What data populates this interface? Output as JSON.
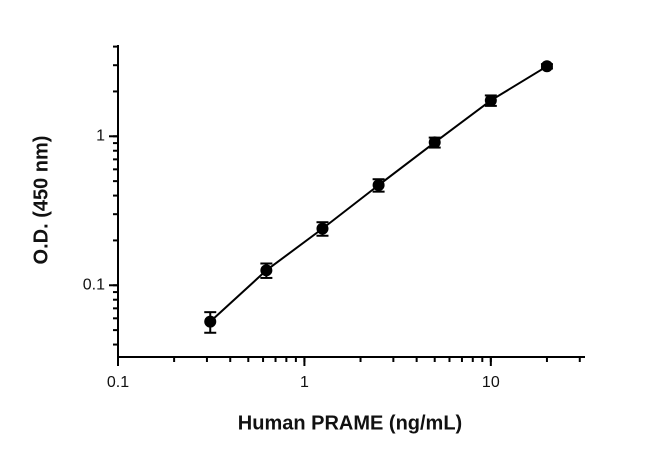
{
  "chart_data": {
    "type": "scatter",
    "x_label": "Human PRAME (ng/mL)",
    "y_label": "O.D. (450 nm)",
    "x": [
      0.3125,
      0.625,
      1.25,
      2.5,
      5,
      10,
      20
    ],
    "series": [
      {
        "values": [
          0.057,
          0.126,
          0.24,
          0.47,
          0.91,
          1.74,
          2.95
        ],
        "errors": [
          0.009,
          0.014,
          0.025,
          0.045,
          0.07,
          0.14,
          0.1
        ],
        "color": "#000000"
      }
    ],
    "xlim": [
      0.1,
      32
    ],
    "ylim": [
      0.033,
      4.1
    ],
    "xticks": [
      0.1,
      1,
      10
    ],
    "yticks": [
      0.1,
      1
    ],
    "xscale": "log",
    "yscale": "log",
    "minor_ticks": true,
    "fit_line": true
  }
}
